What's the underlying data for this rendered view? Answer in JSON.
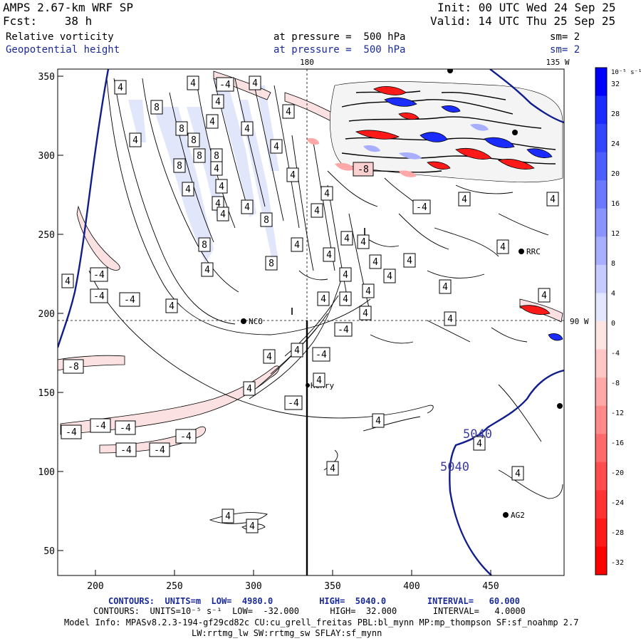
{
  "header": {
    "title": "AMPS 2.67-km WRF SP",
    "init": "Init: 00 UTC Wed 24 Sep 25",
    "fcst": "Fcst:    38 h",
    "valid": "Valid: 14 UTC Thu 25 Sep 25",
    "field1": "Relative vorticity",
    "field1_level": "at pressure =  500 hPa",
    "field1_sm": "sm= 2",
    "field2": "Geopotential height",
    "field2_level": "at pressure =  500 hPa",
    "field2_sm": "sm= 2"
  },
  "map": {
    "top_lon_label_1": "180",
    "top_lon_label_2": "135 W",
    "right_lat_label": "90 W",
    "x_ticks": [
      "200",
      "250",
      "300",
      "350",
      "400",
      "450"
    ],
    "y_ticks": [
      "350",
      "300",
      "250",
      "200",
      "150",
      "100",
      "50"
    ],
    "stations": [
      {
        "name": "NCO"
      },
      {
        "name": "Henry"
      },
      {
        "name": "RRC"
      },
      {
        "name": "AG2"
      }
    ],
    "contour_labels_vort": [
      "4",
      "-4",
      "8",
      "-8"
    ],
    "contour_labels_height": [
      "5040",
      "5040"
    ]
  },
  "colorbar": {
    "unit": "10⁻⁵ s⁻¹",
    "ticks": [
      "32",
      "28",
      "24",
      "20",
      "16",
      "12",
      "8",
      "4",
      "0",
      "-4",
      "-8",
      "-12",
      "-16",
      "-20",
      "-24",
      "-28",
      "-32"
    ],
    "colors_pos": [
      "#0000ff",
      "#1a2cff",
      "#3346ff",
      "#4d5eff",
      "#6b79ff",
      "#8a94ff",
      "#a8afff",
      "#c6cbff",
      "#e4e6ff"
    ],
    "colors_neg": [
      "#ffe4e4",
      "#ffc6c6",
      "#ffa8a8",
      "#ff8a8a",
      "#ff6b6b",
      "#ff4d4d",
      "#ff3333",
      "#ff1a1a",
      "#ff0000"
    ]
  },
  "footer": {
    "line1": "CONTOURS:  UNITS=m  LOW=  4980.0         HIGH=  5040.0        INTERVAL=   60.000",
    "line2": "CONTOURS:  UNITS=10⁻⁵ s⁻¹  LOW=  -32.000      HIGH=  32.000       INTERVAL=   4.0000",
    "line3": "Model Info: MPASv8.2.3-194-gf29cd82c CU:cu_grell_freitas PBL:bl_mynn MP:mp_thompson SF:sf_noahmp 2.7",
    "line4": "LW:rrtmg_lw SW:rrtmg_sw SFLAY:sf_mynn"
  }
}
